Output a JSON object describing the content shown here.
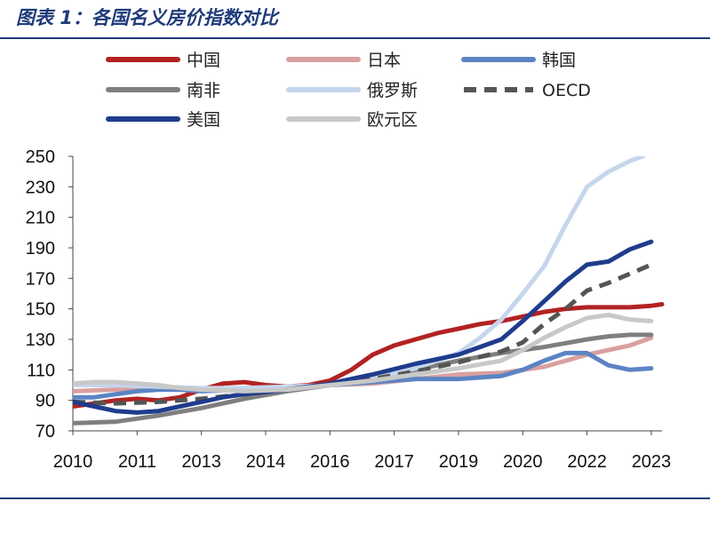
{
  "title": "图表 1：各国名义房价指数对比",
  "chart_data": {
    "type": "line",
    "title": "图表 1：各国名义房价指数对比",
    "xlabel": "",
    "ylabel": "",
    "ylim": [
      70,
      250
    ],
    "yticks": [
      70,
      90,
      110,
      130,
      150,
      170,
      190,
      210,
      230,
      250
    ],
    "xlim": [
      2010,
      2023.75
    ],
    "xtick_labels": [
      "2010",
      "2011",
      "2013",
      "2014",
      "2016",
      "2017",
      "2019",
      "2020",
      "2022",
      "2023"
    ],
    "xtick_positions": [
      2010,
      2011.5,
      2013,
      2014.5,
      2016,
      2017.5,
      2019,
      2020.5,
      2022,
      2023.5
    ],
    "legend_placement": "top",
    "series": [
      {
        "name": "中国",
        "color": "#b22222",
        "dash": false,
        "x": [
          2010,
          2010.5,
          2011,
          2011.5,
          2012,
          2012.5,
          2013,
          2013.5,
          2014,
          2014.5,
          2015,
          2015.5,
          2016,
          2016.5,
          2017,
          2017.5,
          2018,
          2018.5,
          2019,
          2019.5,
          2020,
          2020.5,
          2021,
          2021.5,
          2022,
          2022.5,
          2023,
          2023.5,
          2023.75
        ],
        "y": [
          86,
          88,
          90,
          91,
          90,
          92,
          97,
          101,
          102,
          100,
          99,
          100,
          103,
          110,
          120,
          126,
          130,
          134,
          137,
          140,
          142,
          145,
          148,
          150,
          151,
          151,
          151,
          152,
          153
        ]
      },
      {
        "name": "日本",
        "color": "#d9a0a0",
        "dash": false,
        "x": [
          2010,
          2011,
          2012,
          2013,
          2014,
          2015,
          2016,
          2017,
          2018,
          2019,
          2020,
          2021,
          2022,
          2023,
          2023.5
        ],
        "y": [
          96,
          97,
          97,
          97,
          98,
          99,
          100,
          101,
          104,
          107,
          108,
          112,
          120,
          126,
          131
        ]
      },
      {
        "name": "韩国",
        "color": "#5b84c4",
        "dash": false,
        "x": [
          2010,
          2010.5,
          2011,
          2011.5,
          2012,
          2012.5,
          2013,
          2014,
          2015,
          2016,
          2017,
          2018,
          2019,
          2020,
          2020.5,
          2021,
          2021.5,
          2022,
          2022.5,
          2023,
          2023.5
        ],
        "y": [
          92,
          92,
          94,
          96,
          97,
          97,
          96,
          97,
          98,
          100,
          102,
          104,
          104,
          106,
          110,
          116,
          121,
          121,
          113,
          110,
          111
        ]
      },
      {
        "name": "南非",
        "color": "#7f7f7f",
        "dash": false,
        "x": [
          2010,
          2011,
          2012,
          2013,
          2014,
          2015,
          2016,
          2017,
          2018,
          2019,
          2020,
          2021,
          2022,
          2022.5,
          2023,
          2023.5
        ],
        "y": [
          75,
          76,
          80,
          85,
          91,
          96,
          100,
          105,
          110,
          116,
          121,
          125,
          130,
          132,
          133,
          133
        ]
      },
      {
        "name": "俄罗斯",
        "color": "#c5d6ec",
        "dash": false,
        "x": [
          2010,
          2011,
          2012,
          2013,
          2014,
          2015,
          2016,
          2017,
          2018,
          2019,
          2019.5,
          2020,
          2020.5,
          2021,
          2021.5,
          2022,
          2022.5,
          2023,
          2023.3
        ],
        "y": [
          100,
          100,
          99,
          98,
          98,
          99,
          100,
          104,
          111,
          121,
          131,
          143,
          160,
          178,
          205,
          230,
          240,
          247,
          250
        ]
      },
      {
        "name": "OECD",
        "color": "#555555",
        "dash": true,
        "x": [
          2010,
          2011,
          2012,
          2013,
          2014,
          2015,
          2016,
          2017,
          2018,
          2019,
          2020,
          2020.5,
          2021,
          2021.5,
          2022,
          2022.5,
          2023,
          2023.5
        ],
        "y": [
          89,
          88,
          89,
          91,
          94,
          97,
          100,
          104,
          109,
          115,
          122,
          128,
          140,
          150,
          162,
          167,
          173,
          179
        ]
      },
      {
        "name": "美国",
        "color": "#1f3c8c",
        "dash": false,
        "x": [
          2010,
          2010.5,
          2011,
          2011.5,
          2012,
          2012.5,
          2013,
          2013.5,
          2014,
          2015,
          2016,
          2017,
          2018,
          2019,
          2019.5,
          2020,
          2020.5,
          2021,
          2021.5,
          2022,
          2022.5,
          2023,
          2023.5
        ],
        "y": [
          89,
          86,
          83,
          82,
          83,
          86,
          89,
          92,
          94,
          97,
          101,
          107,
          114,
          120,
          125,
          130,
          142,
          155,
          168,
          179,
          181,
          189,
          194
        ]
      },
      {
        "name": "欧元区",
        "color": "#c8c8c8",
        "dash": false,
        "x": [
          2010,
          2010.5,
          2011,
          2011.5,
          2012,
          2012.5,
          2013,
          2014,
          2015,
          2016,
          2017,
          2018,
          2019,
          2020,
          2020.5,
          2021,
          2021.5,
          2022,
          2022.5,
          2023,
          2023.5
        ],
        "y": [
          101,
          102,
          102,
          101,
          100,
          98,
          97,
          96,
          97,
          100,
          103,
          107,
          111,
          116,
          123,
          131,
          138,
          144,
          146,
          143,
          142
        ]
      }
    ]
  }
}
